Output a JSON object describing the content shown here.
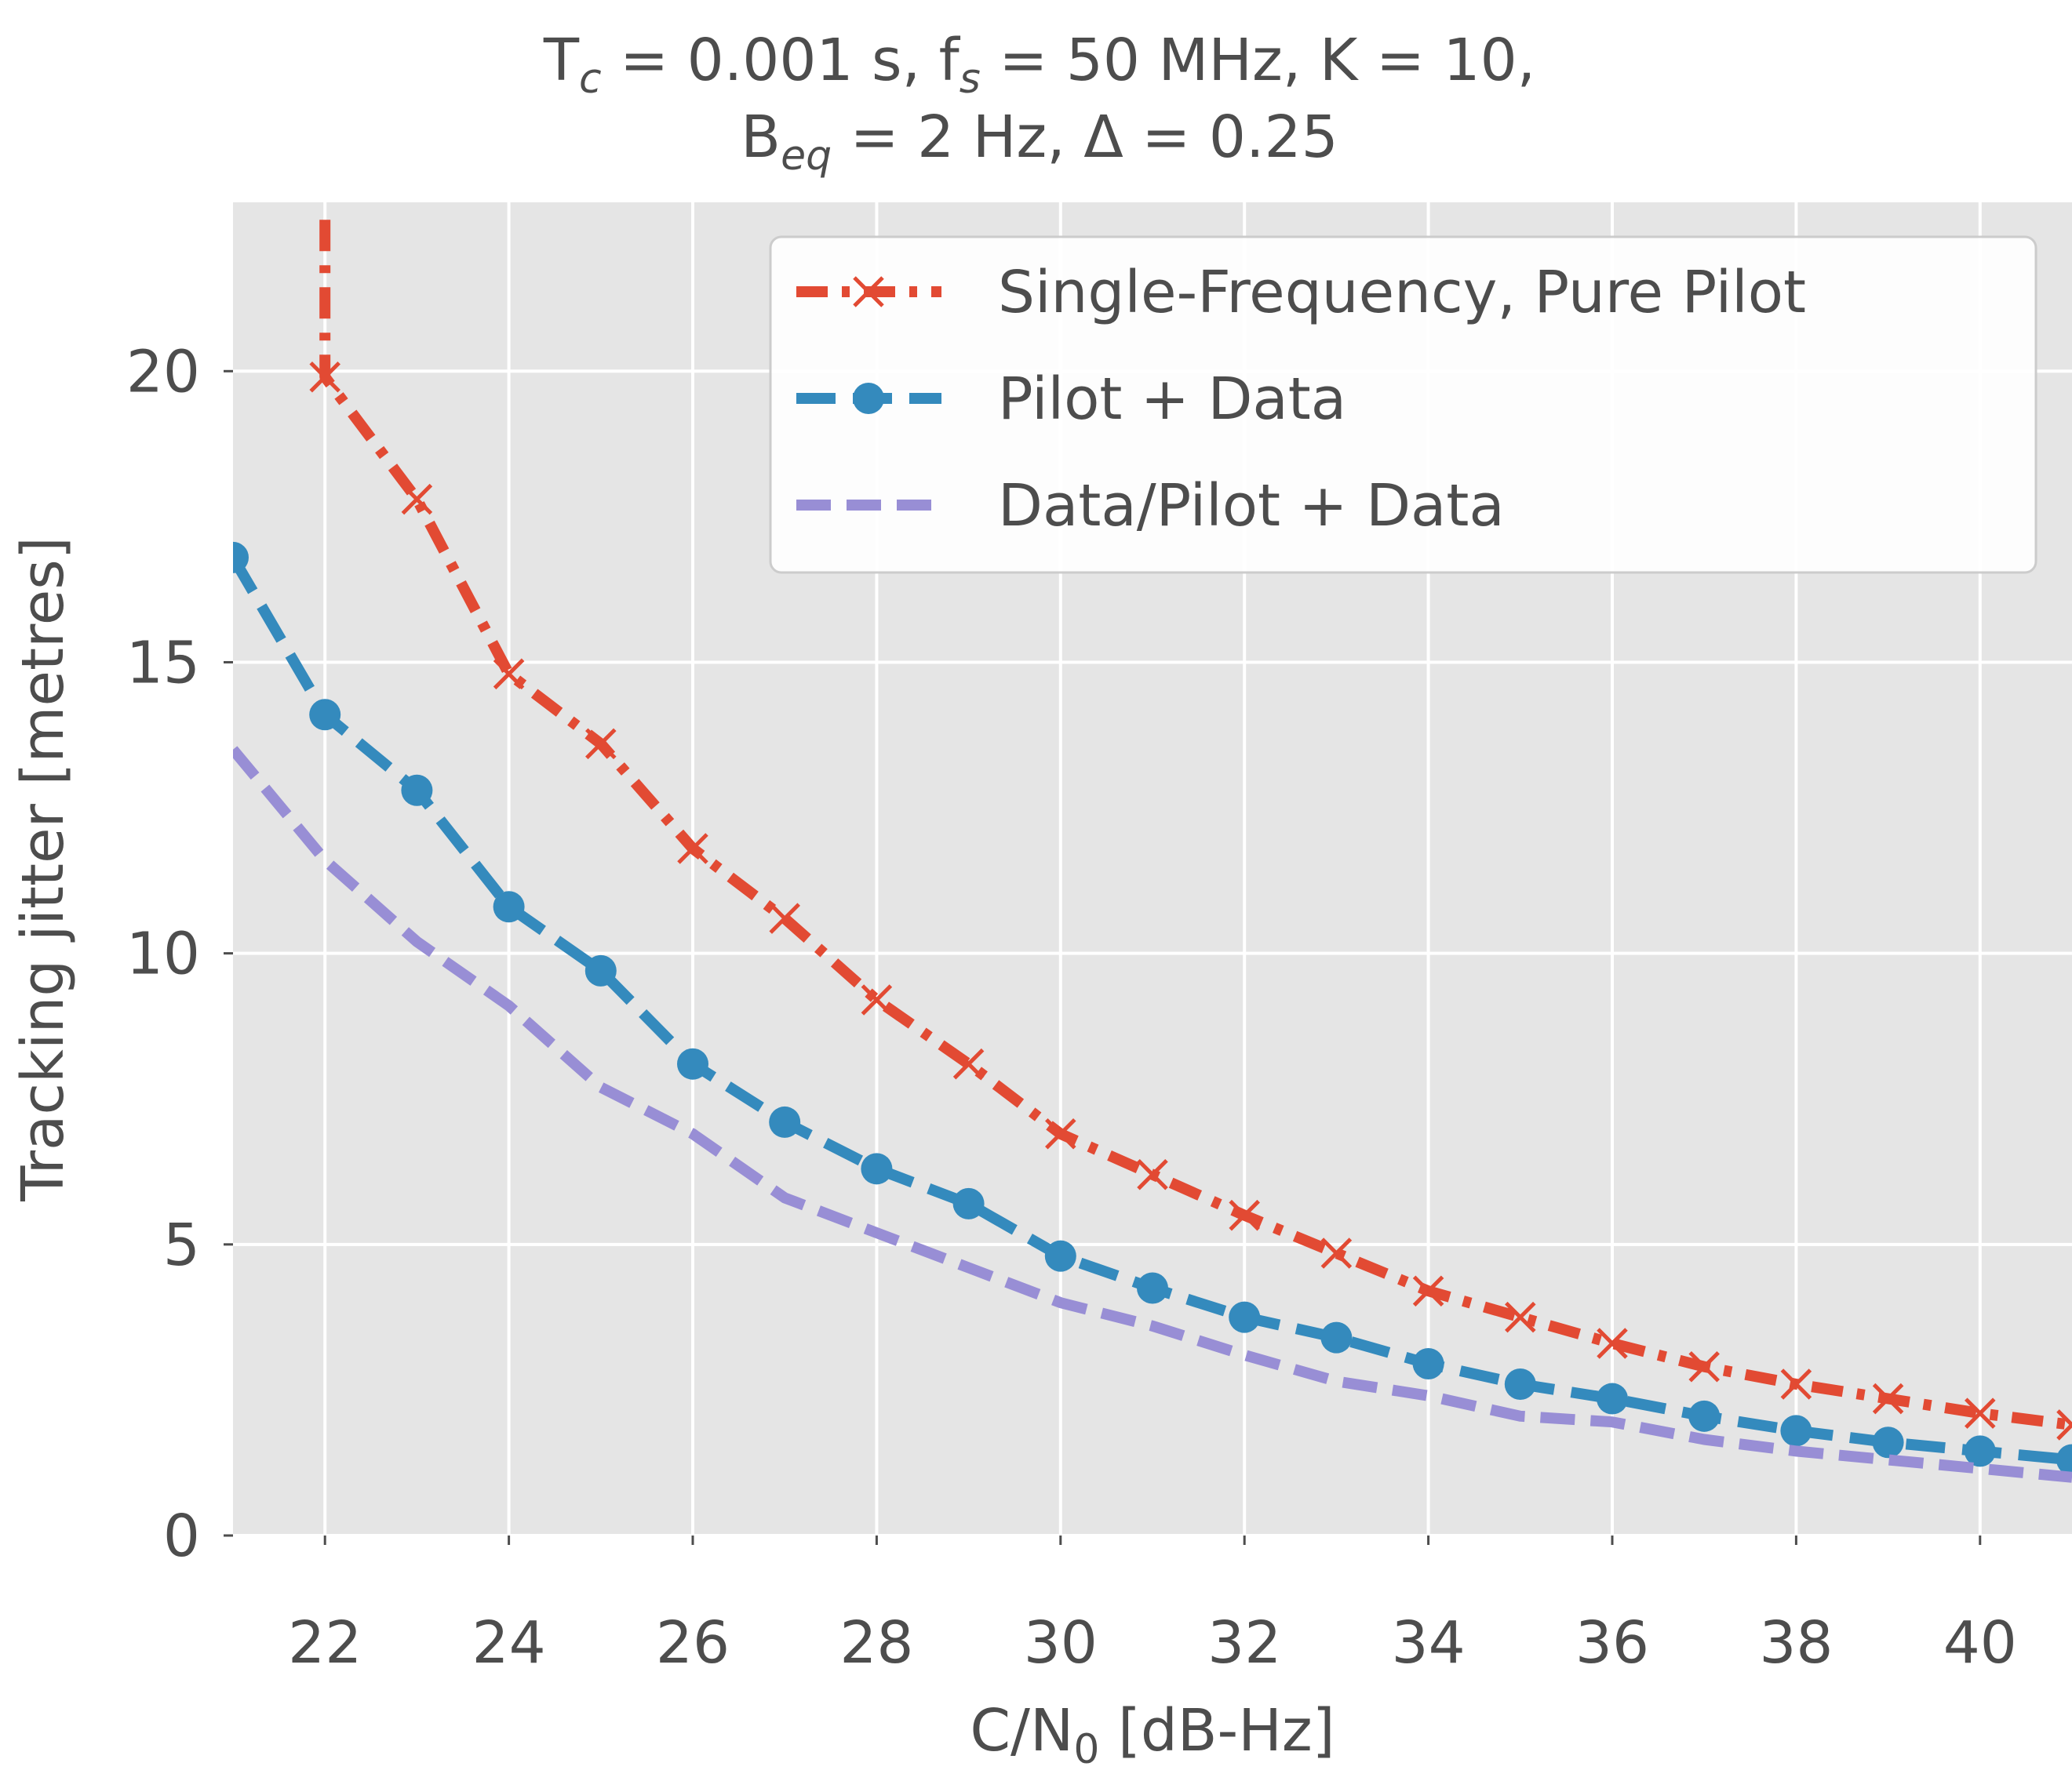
{
  "chart_data": {
    "type": "line",
    "title": {
      "line1": {
        "p1": "T",
        "s1": "c",
        "p2": " = 0.001 s, f",
        "s2": "s",
        "p3": " = 50 MHz, K = 10,"
      },
      "line2": {
        "p1": "B",
        "s1": "eq",
        "p2": " = 2 Hz, Δ = 0.25"
      }
    },
    "xlabel": {
      "main": "C/N",
      "sub": "0",
      "tail": " [dB-Hz]"
    },
    "ylabel": "Tracking jitter [metres]",
    "xlim": [
      21,
      41
    ],
    "ylim": [
      0,
      22.9
    ],
    "xticks": [
      22,
      24,
      26,
      28,
      30,
      32,
      34,
      36,
      38,
      40
    ],
    "xtick_labels": [
      "22",
      "24",
      "26",
      "28",
      "30",
      "32",
      "34",
      "36",
      "38",
      "40"
    ],
    "yticks": [
      0,
      5,
      10,
      15,
      20
    ],
    "ytick_labels": [
      "0",
      "5",
      "10",
      "15",
      "20"
    ],
    "grid": true,
    "legend_position": "top-right",
    "colors": {
      "background": "#e5e5e5",
      "grid": "#ffffff",
      "text": "#4d4d4d"
    },
    "series": [
      {
        "name": "Single-Frequency, Pure Pilot",
        "color": "#e24a33",
        "marker": "x",
        "linestyle": "dashdot",
        "x": [
          22,
          22,
          23,
          24,
          25,
          26,
          27,
          28,
          29,
          30,
          31,
          32,
          33,
          34,
          35,
          36,
          37,
          38,
          39,
          40,
          41
        ],
        "y": [
          22.6,
          19.9,
          17.8,
          14.8,
          13.6,
          11.8,
          10.6,
          9.2,
          8.1,
          6.9,
          6.2,
          5.5,
          4.85,
          4.2,
          3.75,
          3.3,
          2.9,
          2.6,
          2.35,
          2.1,
          1.9
        ],
        "markers": [
          22,
          23,
          24,
          25,
          26,
          27,
          28,
          29,
          30,
          31,
          32,
          33,
          34,
          35,
          36,
          37,
          38,
          39,
          40,
          41
        ]
      },
      {
        "name": "Pilot + Data",
        "color": "#348abd",
        "marker": "o",
        "linestyle": "dashed",
        "x": [
          21,
          22,
          23,
          24,
          25,
          26,
          27,
          28,
          29,
          30,
          31,
          32,
          33,
          34,
          35,
          36,
          37,
          38,
          39,
          40,
          41
        ],
        "y": [
          16.8,
          14.1,
          12.8,
          10.8,
          9.7,
          8.1,
          7.1,
          6.3,
          5.7,
          4.8,
          4.25,
          3.75,
          3.4,
          2.95,
          2.6,
          2.35,
          2.05,
          1.8,
          1.6,
          1.45,
          1.3
        ],
        "markers": [
          21,
          22,
          23,
          24,
          25,
          26,
          27,
          28,
          29,
          30,
          31,
          32,
          33,
          34,
          35,
          36,
          37,
          38,
          39,
          40,
          41
        ]
      },
      {
        "name": "Data/Pilot + Data",
        "color": "#988ed5",
        "marker": "none",
        "linestyle": "dashed",
        "x": [
          21,
          22,
          23,
          24,
          25,
          26,
          27,
          28,
          29,
          30,
          31,
          32,
          33,
          34,
          35,
          36,
          37,
          38,
          39,
          40,
          41
        ],
        "y": [
          13.5,
          11.6,
          10.2,
          9.1,
          7.7,
          6.9,
          5.8,
          5.2,
          4.6,
          4.0,
          3.6,
          3.1,
          2.65,
          2.4,
          2.05,
          1.95,
          1.65,
          1.45,
          1.3,
          1.15,
          1.0
        ],
        "markers": []
      }
    ]
  }
}
